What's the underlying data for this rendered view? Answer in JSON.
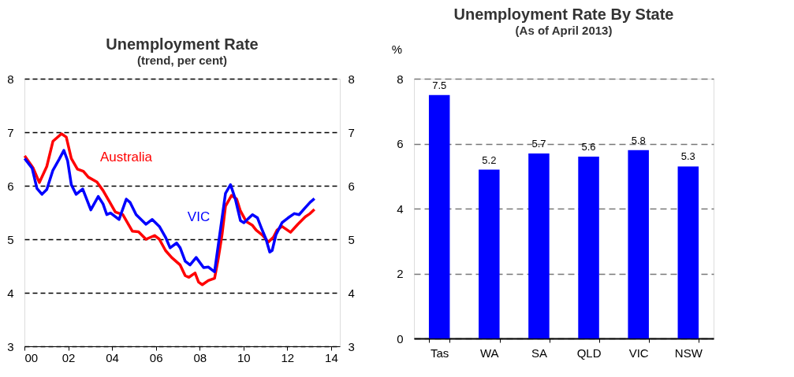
{
  "chart_data": [
    {
      "type": "line",
      "title": "Unemployment Rate",
      "subtitle": "(trend, per cent)",
      "x": [
        2000.01,
        2000.4,
        2000.68,
        2001.02,
        2001.3,
        2001.69,
        2001.91,
        2002.14,
        2002.42,
        2002.69,
        2002.92,
        2003.31,
        2003.59,
        2003.87,
        2004.15,
        2004.49,
        2004.93,
        2005.21,
        2005.55,
        2005.94,
        2006.16,
        2006.44,
        2006.72,
        2007.11,
        2007.34,
        2007.51,
        2007.79,
        2007.95,
        2008.12,
        2008.4,
        2008.68,
        2008.85,
        2009.02,
        2009.18,
        2009.46,
        2009.69,
        2009.86,
        2010.13,
        2010.41,
        2010.58,
        2010.86,
        2011.14,
        2011.37,
        2011.53,
        2011.76,
        2012.15,
        2012.48,
        2012.82,
        2013.04,
        2013.24
      ],
      "series": [
        {
          "name": "Australia",
          "color": "#ff0000",
          "values": [
            6.56,
            6.33,
            6.06,
            6.36,
            6.83,
            6.97,
            6.91,
            6.51,
            6.31,
            6.27,
            6.16,
            6.07,
            5.91,
            5.71,
            5.51,
            5.46,
            5.15,
            5.14,
            5.0,
            5.07,
            5.0,
            4.79,
            4.66,
            4.52,
            4.32,
            4.29,
            4.37,
            4.2,
            4.15,
            4.23,
            4.27,
            4.64,
            5.08,
            5.62,
            5.82,
            5.75,
            5.53,
            5.33,
            5.26,
            5.17,
            5.08,
            4.95,
            5.04,
            5.17,
            5.24,
            5.13,
            5.28,
            5.42,
            5.48,
            5.56
          ]
        },
        {
          "name": "VIC",
          "color": "#0000ff",
          "x": [
            2000.01,
            2000.35,
            2000.57,
            2000.8,
            2001.02,
            2001.3,
            2001.58,
            2001.8,
            2001.97,
            2002.14,
            2002.36,
            2002.66,
            2003.03,
            2003.37,
            2003.59,
            2003.76,
            2003.93,
            2004.32,
            2004.65,
            2004.82,
            2005.1,
            2005.55,
            2005.83,
            2006.16,
            2006.44,
            2006.65,
            2006.95,
            2007.11,
            2007.34,
            2007.56,
            2007.84,
            2008.18,
            2008.4,
            2008.68,
            2008.9,
            2009.18,
            2009.41,
            2009.63,
            2009.86,
            2010.02,
            2010.41,
            2010.64,
            2010.81,
            2011.03,
            2011.2,
            2011.31,
            2011.48,
            2011.76,
            2012.04,
            2012.32,
            2012.54,
            2012.82,
            2013.04,
            2013.24
          ],
          "values": [
            6.51,
            6.33,
            5.95,
            5.84,
            5.93,
            6.29,
            6.49,
            6.66,
            6.47,
            6.02,
            5.84,
            5.94,
            5.55,
            5.8,
            5.66,
            5.46,
            5.49,
            5.37,
            5.75,
            5.69,
            5.46,
            5.28,
            5.37,
            5.24,
            5.04,
            4.84,
            4.93,
            4.84,
            4.59,
            4.52,
            4.66,
            4.47,
            4.48,
            4.39,
            5.04,
            5.86,
            6.02,
            5.75,
            5.35,
            5.31,
            5.46,
            5.4,
            5.22,
            5.0,
            4.76,
            4.79,
            5.08,
            5.31,
            5.4,
            5.48,
            5.46,
            5.59,
            5.69,
            5.76
          ]
        }
      ],
      "xlim": [
        2000,
        2014.4
      ],
      "xticks": [
        {
          "value": 2000,
          "label": "00"
        },
        {
          "value": 2002,
          "label": "02"
        },
        {
          "value": 2004,
          "label": "04"
        },
        {
          "value": 2006,
          "label": "06"
        },
        {
          "value": 2008,
          "label": "08"
        },
        {
          "value": 2010,
          "label": "10"
        },
        {
          "value": 2012,
          "label": "12"
        },
        {
          "value": 2014,
          "label": "14"
        }
      ],
      "ylim": [
        3,
        8
      ],
      "yticks": [
        3,
        4,
        5,
        6,
        7,
        8
      ],
      "y2lim": [
        3,
        8
      ],
      "y2ticks": [
        3,
        4,
        5,
        6,
        7,
        8
      ],
      "grid": "y",
      "line_style": "solid",
      "marker": "none"
    },
    {
      "type": "bar",
      "title": "Unemployment Rate By State",
      "subtitle": "(As of April 2013)",
      "ylabel": "%",
      "categories": [
        "Tas",
        "WA",
        "SA",
        "QLD",
        "VIC",
        "NSW"
      ],
      "values": [
        7.5,
        5.2,
        5.7,
        5.6,
        5.8,
        5.3
      ],
      "color": "#0000ff",
      "ylim": [
        0,
        8
      ],
      "yticks": [
        0,
        2,
        4,
        6,
        8
      ],
      "grid": "y",
      "data_labels": true
    }
  ]
}
